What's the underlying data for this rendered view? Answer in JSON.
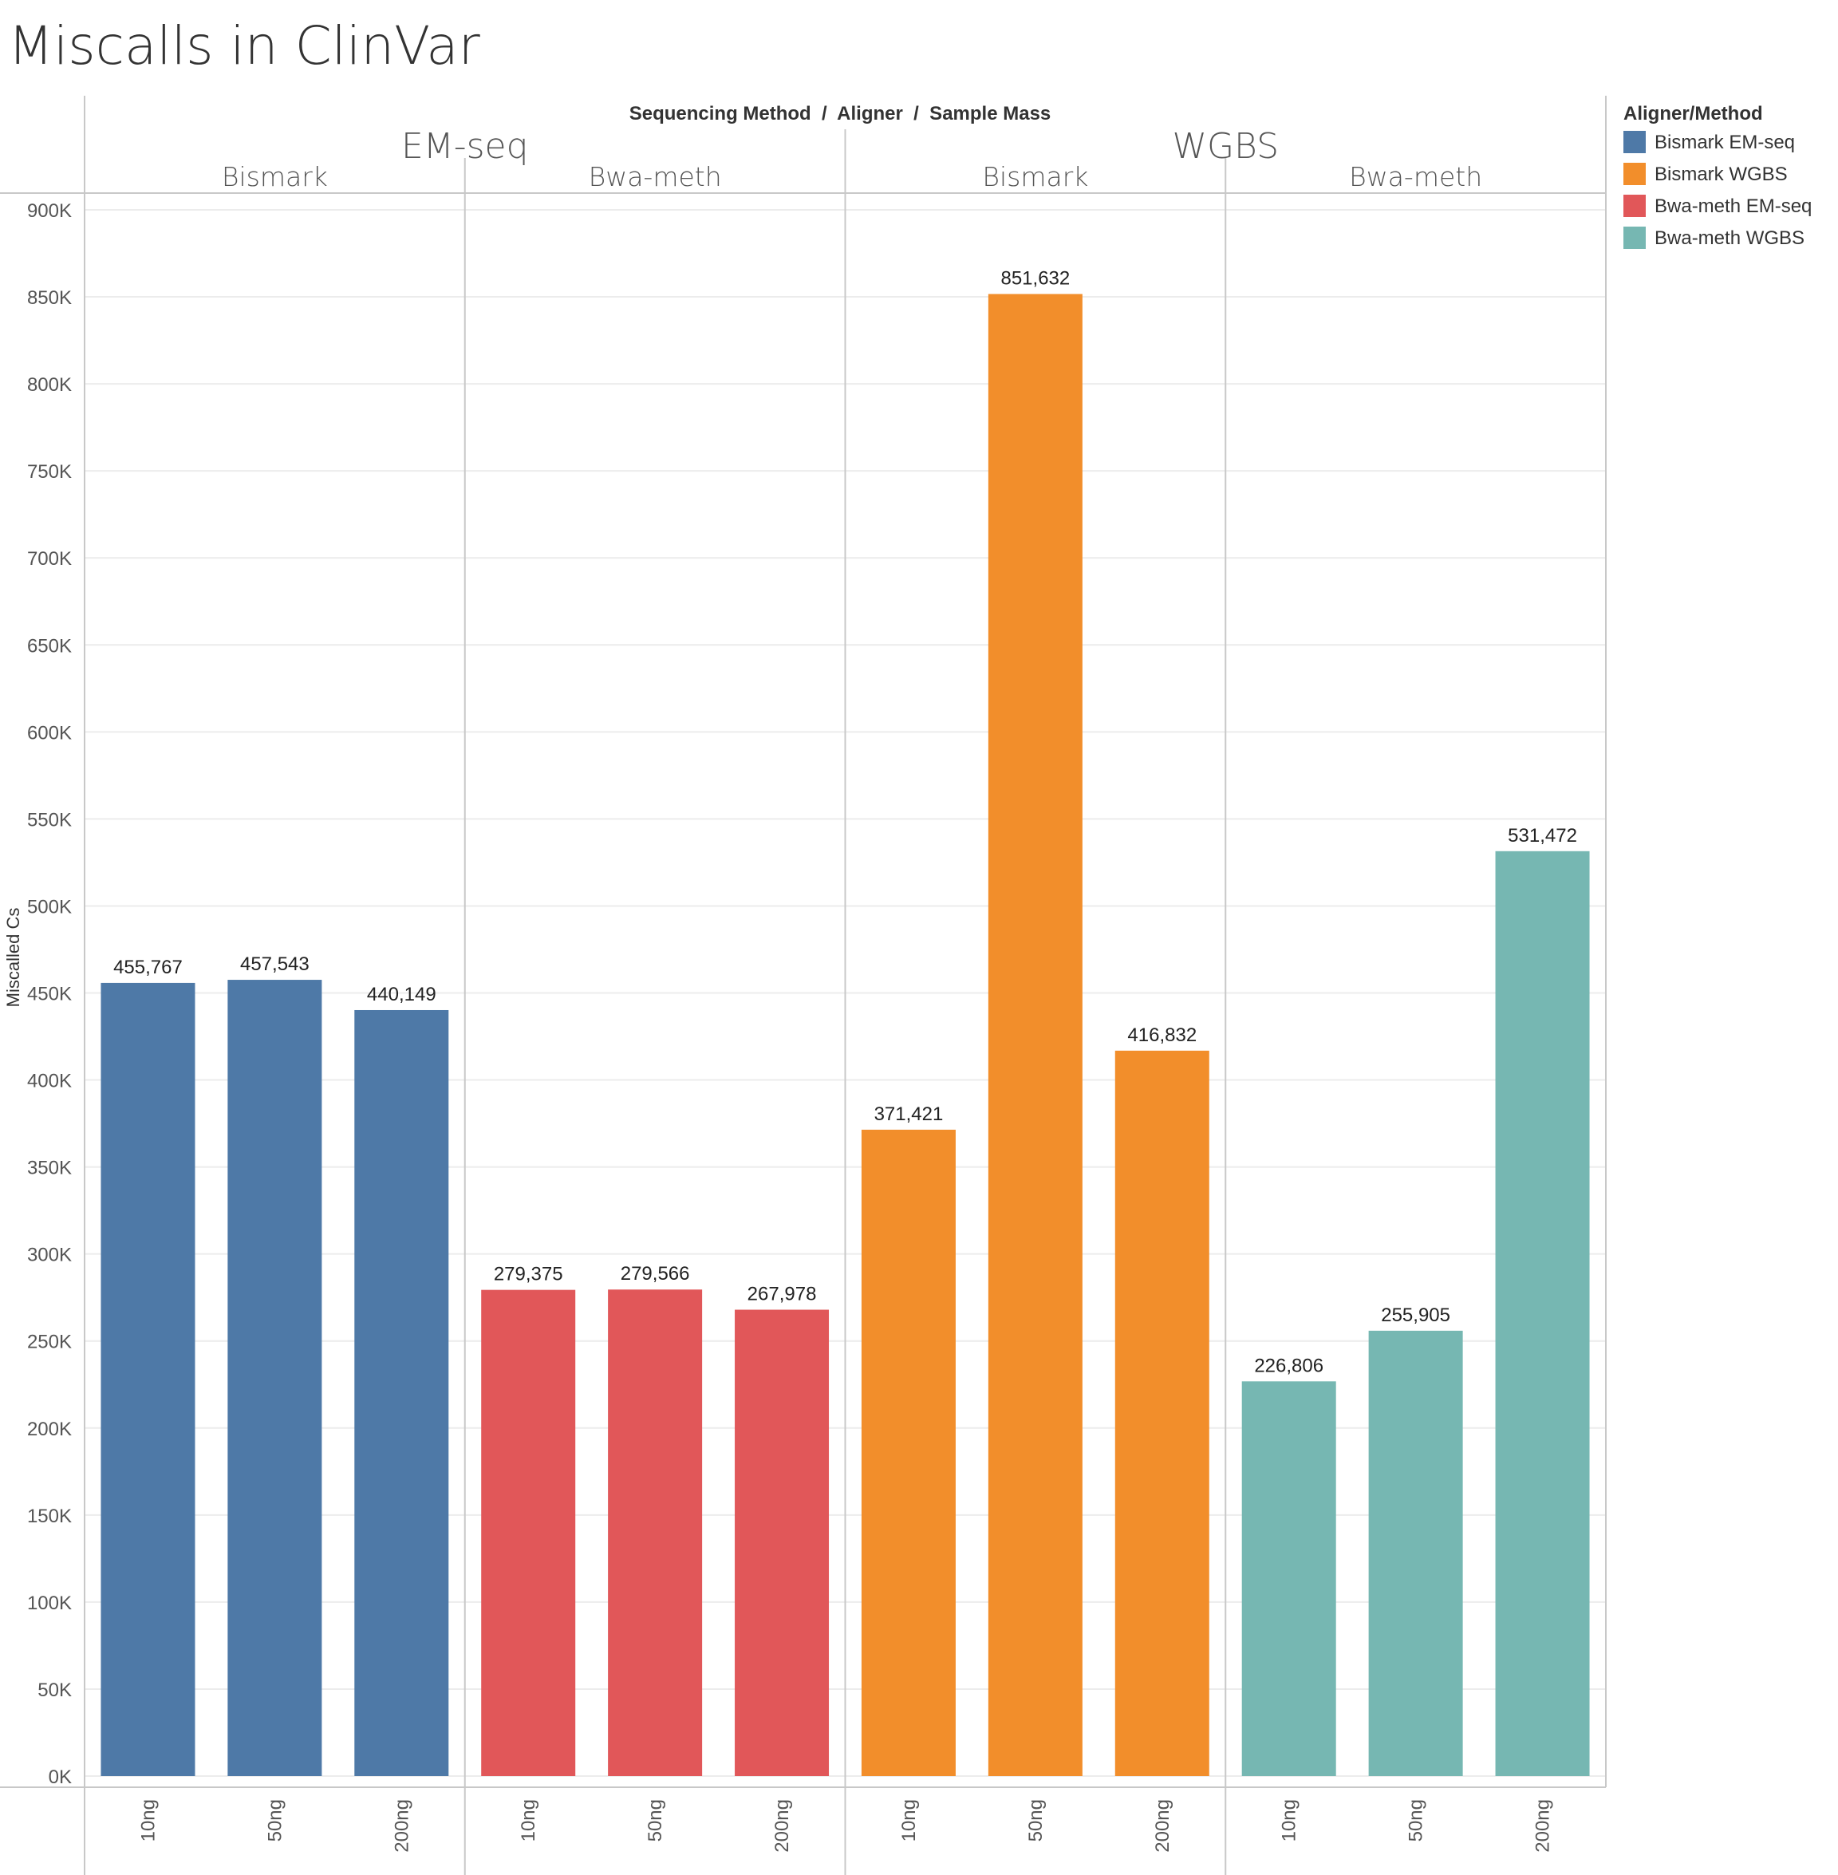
{
  "chart_data": {
    "type": "bar",
    "title": "Miscalls in ClinVar",
    "header_caption": "Sequencing Method  /  Aligner  /  Sample Mass",
    "ylabel": "Miscalled Cs",
    "ylim": [
      0,
      900000
    ],
    "yticks": [
      {
        "value": 0,
        "label": "0K"
      },
      {
        "value": 50000,
        "label": "50K"
      },
      {
        "value": 100000,
        "label": "100K"
      },
      {
        "value": 150000,
        "label": "150K"
      },
      {
        "value": 200000,
        "label": "200K"
      },
      {
        "value": 250000,
        "label": "250K"
      },
      {
        "value": 300000,
        "label": "300K"
      },
      {
        "value": 350000,
        "label": "350K"
      },
      {
        "value": 400000,
        "label": "400K"
      },
      {
        "value": 450000,
        "label": "450K"
      },
      {
        "value": 500000,
        "label": "500K"
      },
      {
        "value": 550000,
        "label": "550K"
      },
      {
        "value": 600000,
        "label": "600K"
      },
      {
        "value": 650000,
        "label": "650K"
      },
      {
        "value": 700000,
        "label": "700K"
      },
      {
        "value": 750000,
        "label": "750K"
      },
      {
        "value": 800000,
        "label": "800K"
      },
      {
        "value": 850000,
        "label": "850K"
      },
      {
        "value": 900000,
        "label": "900K"
      }
    ],
    "grid": true,
    "methods": [
      {
        "label": "EM-seq",
        "aligners": [
          {
            "label": "Bismark",
            "series": "Bismark EM-seq",
            "bars": [
              {
                "x": "10ng",
                "value": 455767,
                "label": "455,767"
              },
              {
                "x": "50ng",
                "value": 457543,
                "label": "457,543"
              },
              {
                "x": "200ng",
                "value": 440149,
                "label": "440,149"
              }
            ]
          },
          {
            "label": "Bwa-meth",
            "series": "Bwa-meth EM-seq",
            "bars": [
              {
                "x": "10ng",
                "value": 279375,
                "label": "279,375"
              },
              {
                "x": "50ng",
                "value": 279566,
                "label": "279,566"
              },
              {
                "x": "200ng",
                "value": 267978,
                "label": "267,978"
              }
            ]
          }
        ]
      },
      {
        "label": "WGBS",
        "aligners": [
          {
            "label": "Bismark",
            "series": "Bismark WGBS",
            "bars": [
              {
                "x": "10ng",
                "value": 371421,
                "label": "371,421"
              },
              {
                "x": "50ng",
                "value": 851632,
                "label": "851,632"
              },
              {
                "x": "200ng",
                "value": 416832,
                "label": "416,832"
              }
            ]
          },
          {
            "label": "Bwa-meth",
            "series": "Bwa-meth WGBS",
            "bars": [
              {
                "x": "10ng",
                "value": 226806,
                "label": "226,806"
              },
              {
                "x": "50ng",
                "value": 255905,
                "label": "255,905"
              },
              {
                "x": "200ng",
                "value": 531472,
                "label": "531,472"
              }
            ]
          }
        ]
      }
    ],
    "legend": {
      "title": "Aligner/Method",
      "position": "right",
      "items": [
        {
          "name": "Bismark EM-seq",
          "color": "#4e79a7"
        },
        {
          "name": "Bismark WGBS",
          "color": "#f28e2b"
        },
        {
          "name": "Bwa-meth EM-seq",
          "color": "#e15759"
        },
        {
          "name": "Bwa-meth WGBS",
          "color": "#76b7b2"
        }
      ]
    }
  }
}
